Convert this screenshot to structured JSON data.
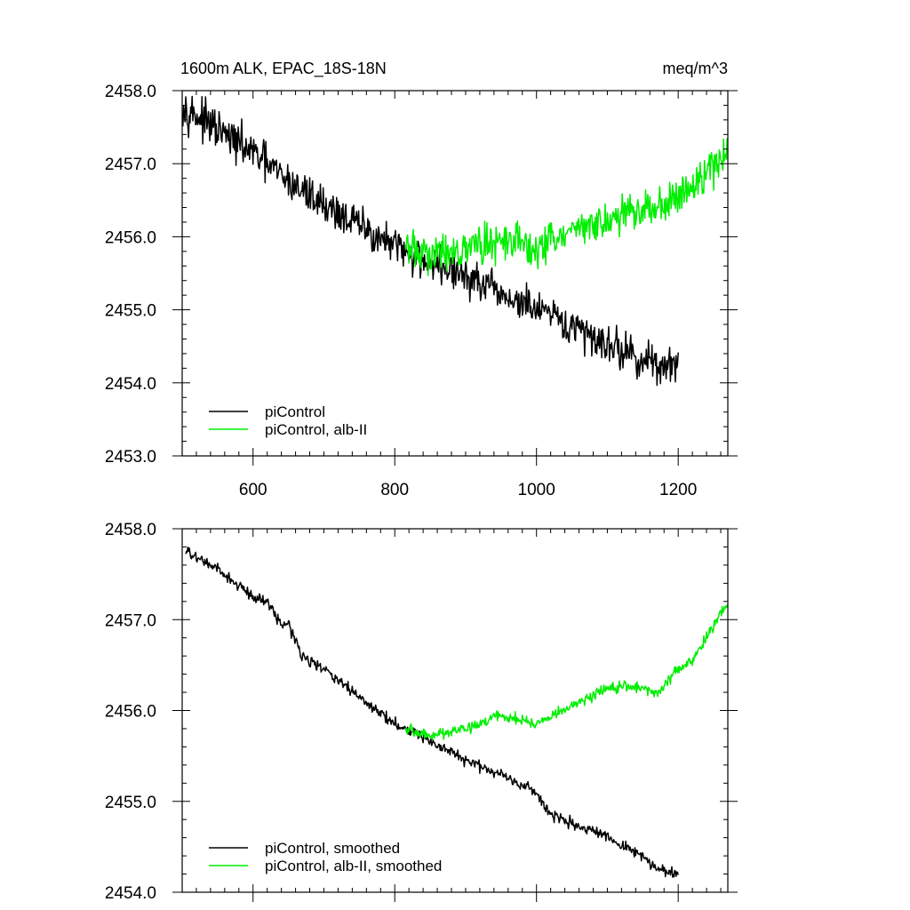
{
  "chart_data": [
    {
      "type": "line",
      "title": "1600m ALK, EPAC_18S-18N",
      "units": "meq/m^3",
      "xlim": [
        500,
        1270
      ],
      "ylim": [
        2453.0,
        2458.0
      ],
      "x_ticks": [
        600,
        800,
        1000,
        1200
      ],
      "x_tick_labels": [
        "600",
        "800",
        "1000",
        "1200"
      ],
      "y_ticks": [
        2453.0,
        2454.0,
        2455.0,
        2456.0,
        2457.0,
        2458.0
      ],
      "y_tick_labels": [
        "2453.0",
        "2454.0",
        "2455.0",
        "2456.0",
        "2457.0",
        "2458.0"
      ],
      "grid": false,
      "legend_position": "bottom-left",
      "series": [
        {
          "name": "piControl",
          "color": "#000000",
          "x": [
            500,
            550,
            600,
            650,
            700,
            750,
            800,
            850,
            900,
            950,
            1000,
            1050,
            1100,
            1150,
            1200
          ],
          "y": [
            2457.8,
            2457.45,
            2457.15,
            2456.75,
            2456.45,
            2456.15,
            2455.85,
            2455.65,
            2455.45,
            2455.2,
            2455.0,
            2454.75,
            2454.55,
            2454.3,
            2454.2
          ]
        },
        {
          "name": "piControl, alb-II",
          "color": "#00ee00",
          "x": [
            815,
            850,
            900,
            950,
            1000,
            1050,
            1100,
            1150,
            1200,
            1250,
            1270
          ],
          "y": [
            2455.85,
            2455.75,
            2455.85,
            2455.95,
            2455.85,
            2456.05,
            2456.25,
            2456.35,
            2456.55,
            2456.95,
            2457.2
          ]
        }
      ]
    },
    {
      "type": "line",
      "xlim": [
        500,
        1270
      ],
      "ylim": [
        2454.0,
        2458.0
      ],
      "x_ticks": [
        600,
        800,
        1000,
        1200
      ],
      "y_ticks": [
        2454.0,
        2455.0,
        2456.0,
        2457.0,
        2458.0
      ],
      "y_tick_labels": [
        "2454.0",
        "2455.0",
        "2456.0",
        "2457.0",
        "2458.0"
      ],
      "grid": false,
      "legend_position": "bottom-left",
      "series": [
        {
          "name": "piControl, smoothed",
          "color": "#000000",
          "x": [
            505,
            550,
            600,
            620,
            640,
            650,
            670,
            700,
            750,
            800,
            820,
            850,
            900,
            950,
            1000,
            1020,
            1050,
            1100,
            1150,
            1170,
            1200
          ],
          "y": [
            2457.75,
            2457.55,
            2457.25,
            2457.2,
            2456.95,
            2456.95,
            2456.6,
            2456.45,
            2456.15,
            2455.85,
            2455.8,
            2455.65,
            2455.45,
            2455.3,
            2455.1,
            2454.85,
            2454.75,
            2454.6,
            2454.4,
            2454.25,
            2454.2
          ]
        },
        {
          "name": "piControl, alb-II, smoothed",
          "color": "#00ee00",
          "x": [
            815,
            850,
            900,
            950,
            1000,
            1050,
            1100,
            1150,
            1170,
            1200,
            1220,
            1250,
            1270
          ],
          "y": [
            2455.8,
            2455.72,
            2455.8,
            2455.95,
            2455.85,
            2456.05,
            2456.25,
            2456.25,
            2456.2,
            2456.45,
            2456.55,
            2456.95,
            2457.2
          ]
        }
      ]
    }
  ]
}
